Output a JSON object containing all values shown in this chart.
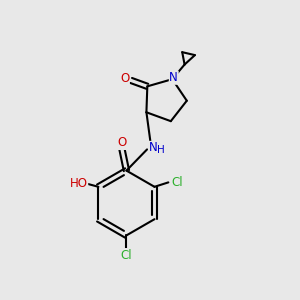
{
  "bg_color": "#e8e8e8",
  "bond_color": "#000000",
  "bond_width": 1.5,
  "font_size": 8.5,
  "fig_size": [
    3.0,
    3.0
  ],
  "dpi": 100,
  "atom_colors": {
    "O": "#cc0000",
    "N": "#0000cc",
    "Cl": "#2db02d",
    "C": "#000000"
  }
}
